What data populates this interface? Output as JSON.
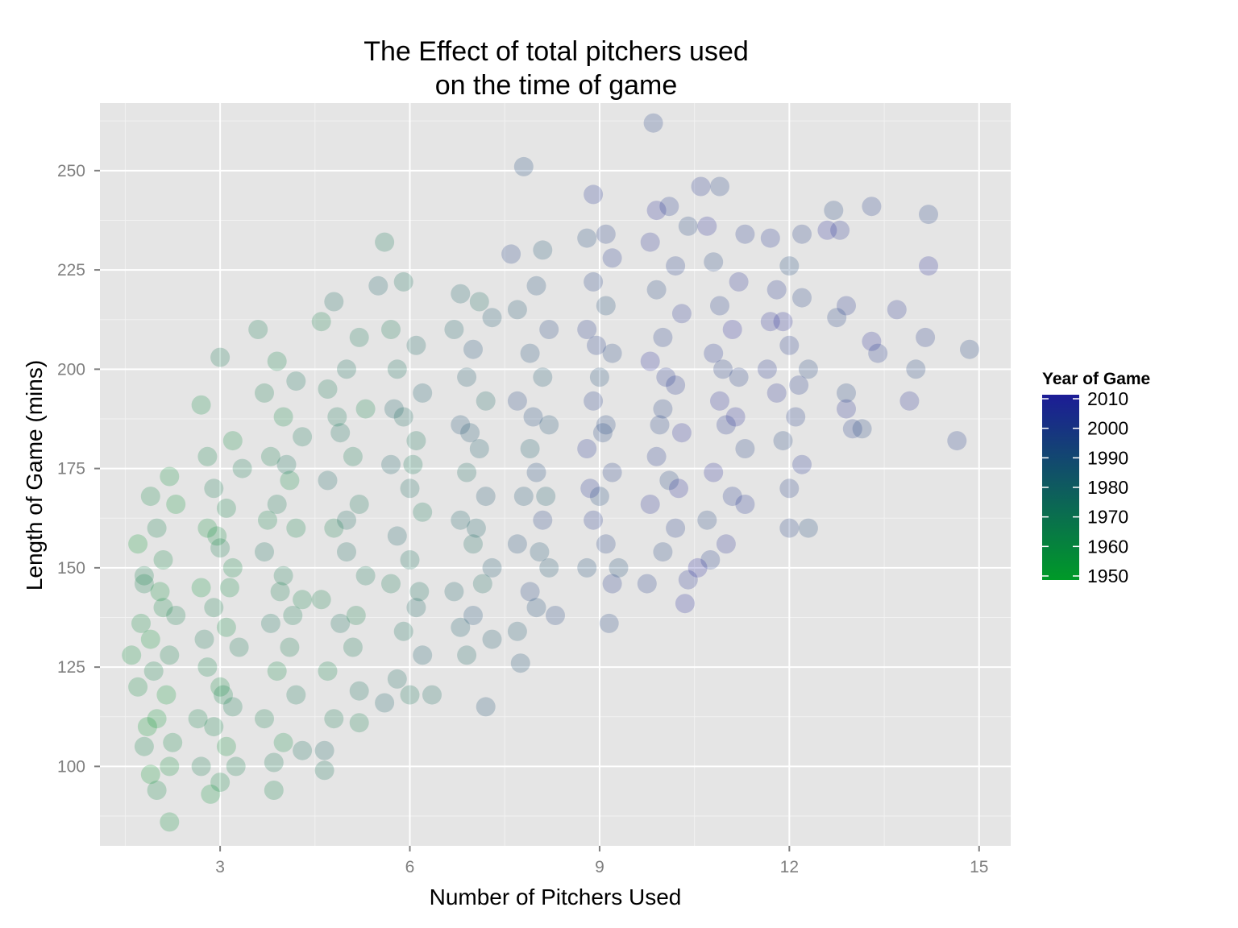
{
  "chart_data": {
    "type": "scatter",
    "title_lines": [
      "The Effect of total pitchers used",
      "on the time of game"
    ],
    "xlabel": "Number of Pitchers Used",
    "ylabel": "Length of Game (mins)",
    "xlim": [
      1.1,
      15.5
    ],
    "ylim": [
      80,
      267
    ],
    "x_ticks": [
      3,
      6,
      9,
      12,
      15
    ],
    "y_ticks": [
      100,
      125,
      150,
      175,
      200,
      225,
      250
    ],
    "grid": true,
    "panel_background": "#e5e5e5",
    "point_opacity": 0.22,
    "color_scale": {
      "title": "Year of Game",
      "low_year": 1950,
      "high_year": 2010,
      "low_color": "#009a28",
      "high_color": "#1c1c96",
      "legend_ticks": [
        2010,
        2000,
        1990,
        1980,
        1970,
        1960,
        1950
      ],
      "legend_position": "right"
    },
    "note_on_data": "Points are jittered horizontally around each integer pitcher count; values below are representative readings from the plot.",
    "series": [
      {
        "x_center": 2,
        "year_center": 1958,
        "points": [
          [
            1.7,
            156
          ],
          [
            1.9,
            168
          ],
          [
            2.2,
            173
          ],
          [
            1.8,
            146
          ],
          [
            2.1,
            140
          ],
          [
            1.9,
            132
          ],
          [
            2.2,
            128
          ],
          [
            1.7,
            120
          ],
          [
            2.0,
            112
          ],
          [
            1.8,
            105
          ],
          [
            2.2,
            100
          ],
          [
            1.9,
            98
          ],
          [
            2.0,
            94
          ],
          [
            2.2,
            86
          ],
          [
            1.8,
            148
          ],
          [
            2.1,
            152
          ],
          [
            2.3,
            166
          ],
          [
            2.0,
            160
          ],
          [
            1.75,
            136
          ],
          [
            2.15,
            118
          ],
          [
            1.95,
            124
          ],
          [
            2.05,
            144
          ],
          [
            1.85,
            110
          ],
          [
            2.25,
            106
          ],
          [
            1.6,
            128
          ],
          [
            2.3,
            138
          ]
        ]
      },
      {
        "x_center": 3,
        "year_center": 1962,
        "points": [
          [
            2.7,
            191
          ],
          [
            3.0,
            203
          ],
          [
            2.8,
            178
          ],
          [
            3.2,
            182
          ],
          [
            2.9,
            170
          ],
          [
            3.1,
            165
          ],
          [
            2.8,
            160
          ],
          [
            3.0,
            155
          ],
          [
            3.2,
            150
          ],
          [
            2.7,
            145
          ],
          [
            2.9,
            140
          ],
          [
            3.1,
            135
          ],
          [
            3.3,
            130
          ],
          [
            2.8,
            125
          ],
          [
            3.0,
            120
          ],
          [
            3.2,
            115
          ],
          [
            2.9,
            110
          ],
          [
            3.1,
            105
          ],
          [
            2.7,
            100
          ],
          [
            3.0,
            96
          ],
          [
            2.85,
            93
          ],
          [
            3.25,
            100
          ],
          [
            3.15,
            145
          ],
          [
            2.75,
            132
          ],
          [
            3.05,
            118
          ],
          [
            2.95,
            158
          ],
          [
            3.35,
            175
          ],
          [
            2.65,
            112
          ]
        ]
      },
      {
        "x_center": 4,
        "year_center": 1966,
        "points": [
          [
            3.6,
            210
          ],
          [
            3.9,
            202
          ],
          [
            4.2,
            197
          ],
          [
            3.7,
            194
          ],
          [
            4.0,
            188
          ],
          [
            4.3,
            183
          ],
          [
            3.8,
            178
          ],
          [
            4.1,
            172
          ],
          [
            3.9,
            166
          ],
          [
            4.2,
            160
          ],
          [
            3.7,
            154
          ],
          [
            4.0,
            148
          ],
          [
            4.3,
            142
          ],
          [
            3.8,
            136
          ],
          [
            4.1,
            130
          ],
          [
            3.9,
            124
          ],
          [
            4.2,
            118
          ],
          [
            3.7,
            112
          ],
          [
            4.0,
            106
          ],
          [
            3.85,
            101
          ],
          [
            3.85,
            94
          ],
          [
            4.3,
            104
          ],
          [
            4.15,
            138
          ],
          [
            3.75,
            162
          ],
          [
            4.05,
            176
          ],
          [
            3.95,
            144
          ]
        ]
      },
      {
        "x_center": 5,
        "year_center": 1970,
        "points": [
          [
            4.8,
            217
          ],
          [
            5.2,
            208
          ],
          [
            4.6,
            212
          ],
          [
            5.0,
            200
          ],
          [
            4.7,
            195
          ],
          [
            5.3,
            190
          ],
          [
            4.9,
            184
          ],
          [
            5.1,
            178
          ],
          [
            4.7,
            172
          ],
          [
            5.2,
            166
          ],
          [
            4.8,
            160
          ],
          [
            5.0,
            154
          ],
          [
            5.3,
            148
          ],
          [
            4.6,
            142
          ],
          [
            4.9,
            136
          ],
          [
            5.1,
            130
          ],
          [
            4.7,
            124
          ],
          [
            5.2,
            119
          ],
          [
            4.8,
            112
          ],
          [
            4.65,
            104
          ],
          [
            4.65,
            99
          ],
          [
            5.2,
            111
          ],
          [
            5.0,
            162
          ],
          [
            4.85,
            188
          ],
          [
            5.15,
            138
          ]
        ]
      },
      {
        "x_center": 6,
        "year_center": 1975,
        "points": [
          [
            5.6,
            232
          ],
          [
            5.5,
            221
          ],
          [
            5.9,
            222
          ],
          [
            5.7,
            210
          ],
          [
            6.1,
            206
          ],
          [
            5.8,
            200
          ],
          [
            6.2,
            194
          ],
          [
            5.9,
            188
          ],
          [
            6.1,
            182
          ],
          [
            5.7,
            176
          ],
          [
            6.0,
            170
          ],
          [
            6.2,
            164
          ],
          [
            5.8,
            158
          ],
          [
            6.0,
            152
          ],
          [
            5.7,
            146
          ],
          [
            6.1,
            140
          ],
          [
            5.9,
            134
          ],
          [
            6.2,
            128
          ],
          [
            5.8,
            122
          ],
          [
            6.0,
            118
          ],
          [
            5.6,
            116
          ],
          [
            6.35,
            118
          ],
          [
            6.05,
            176
          ],
          [
            5.75,
            190
          ],
          [
            6.15,
            144
          ]
        ]
      },
      {
        "x_center": 7,
        "year_center": 1982,
        "points": [
          [
            6.8,
            219
          ],
          [
            7.1,
            217
          ],
          [
            7.3,
            213
          ],
          [
            6.7,
            210
          ],
          [
            7.0,
            205
          ],
          [
            6.9,
            198
          ],
          [
            7.2,
            192
          ],
          [
            6.8,
            186
          ],
          [
            7.1,
            180
          ],
          [
            6.9,
            174
          ],
          [
            7.2,
            168
          ],
          [
            6.8,
            162
          ],
          [
            7.0,
            156
          ],
          [
            7.3,
            150
          ],
          [
            6.7,
            144
          ],
          [
            7.0,
            138
          ],
          [
            7.3,
            132
          ],
          [
            6.9,
            128
          ],
          [
            7.2,
            115
          ],
          [
            6.8,
            135
          ],
          [
            7.15,
            146
          ],
          [
            6.95,
            184
          ],
          [
            7.05,
            160
          ]
        ]
      },
      {
        "x_center": 8,
        "year_center": 1990,
        "points": [
          [
            7.8,
            251
          ],
          [
            8.1,
            230
          ],
          [
            7.6,
            229
          ],
          [
            8.0,
            221
          ],
          [
            7.7,
            215
          ],
          [
            8.2,
            210
          ],
          [
            7.9,
            204
          ],
          [
            8.1,
            198
          ],
          [
            7.7,
            192
          ],
          [
            8.2,
            186
          ],
          [
            7.9,
            180
          ],
          [
            8.0,
            174
          ],
          [
            7.8,
            168
          ],
          [
            8.1,
            162
          ],
          [
            7.7,
            156
          ],
          [
            8.2,
            150
          ],
          [
            7.9,
            144
          ],
          [
            8.0,
            140
          ],
          [
            7.7,
            134
          ],
          [
            8.3,
            138
          ],
          [
            7.75,
            126
          ],
          [
            8.15,
            168
          ],
          [
            7.95,
            188
          ],
          [
            8.05,
            154
          ]
        ]
      },
      {
        "x_center": 9,
        "year_center": 1997,
        "points": [
          [
            8.9,
            244
          ],
          [
            9.1,
            234
          ],
          [
            8.8,
            233
          ],
          [
            9.2,
            228
          ],
          [
            8.9,
            222
          ],
          [
            9.1,
            216
          ],
          [
            8.8,
            210
          ],
          [
            9.2,
            204
          ],
          [
            9.0,
            198
          ],
          [
            8.9,
            192
          ],
          [
            9.1,
            186
          ],
          [
            8.8,
            180
          ],
          [
            9.2,
            174
          ],
          [
            9.0,
            168
          ],
          [
            8.9,
            162
          ],
          [
            9.1,
            156
          ],
          [
            8.8,
            150
          ],
          [
            9.2,
            146
          ],
          [
            9.15,
            136
          ],
          [
            9.3,
            150
          ],
          [
            8.95,
            206
          ],
          [
            9.05,
            184
          ],
          [
            8.85,
            170
          ]
        ]
      },
      {
        "x_center": 10,
        "year_center": 2002,
        "points": [
          [
            9.85,
            262
          ],
          [
            9.9,
            240
          ],
          [
            10.1,
            241
          ],
          [
            10.4,
            236
          ],
          [
            9.8,
            232
          ],
          [
            10.2,
            226
          ],
          [
            9.9,
            220
          ],
          [
            10.3,
            214
          ],
          [
            10.0,
            208
          ],
          [
            9.8,
            202
          ],
          [
            10.2,
            196
          ],
          [
            10.0,
            190
          ],
          [
            10.3,
            184
          ],
          [
            9.9,
            178
          ],
          [
            10.1,
            172
          ],
          [
            9.8,
            166
          ],
          [
            10.2,
            160
          ],
          [
            10.0,
            154
          ],
          [
            10.4,
            147
          ],
          [
            9.75,
            146
          ],
          [
            10.35,
            141
          ],
          [
            10.05,
            198
          ],
          [
            9.95,
            186
          ],
          [
            10.25,
            170
          ]
        ]
      },
      {
        "x_center": 11,
        "year_center": 2003,
        "points": [
          [
            10.6,
            246
          ],
          [
            10.9,
            246
          ],
          [
            10.7,
            236
          ],
          [
            11.3,
            234
          ],
          [
            10.8,
            227
          ],
          [
            11.2,
            222
          ],
          [
            10.9,
            216
          ],
          [
            11.1,
            210
          ],
          [
            10.8,
            204
          ],
          [
            11.2,
            198
          ],
          [
            10.9,
            192
          ],
          [
            11.0,
            186
          ],
          [
            11.3,
            180
          ],
          [
            10.8,
            174
          ],
          [
            11.1,
            168
          ],
          [
            10.7,
            162
          ],
          [
            11.0,
            156
          ],
          [
            10.75,
            152
          ],
          [
            10.55,
            150
          ],
          [
            11.3,
            166
          ],
          [
            10.95,
            200
          ],
          [
            11.15,
            188
          ]
        ]
      },
      {
        "x_center": 12,
        "year_center": 2000,
        "points": [
          [
            11.7,
            233
          ],
          [
            12.2,
            234
          ],
          [
            12.0,
            226
          ],
          [
            11.8,
            220
          ],
          [
            12.2,
            218
          ],
          [
            11.7,
            212
          ],
          [
            12.0,
            206
          ],
          [
            12.3,
            200
          ],
          [
            11.8,
            194
          ],
          [
            12.1,
            188
          ],
          [
            11.9,
            182
          ],
          [
            12.2,
            176
          ],
          [
            12.0,
            170
          ],
          [
            12.3,
            160
          ],
          [
            11.65,
            200
          ],
          [
            12.0,
            160
          ],
          [
            11.9,
            212
          ],
          [
            12.15,
            196
          ]
        ]
      },
      {
        "x_center": 13,
        "year_center": 2002,
        "points": [
          [
            12.7,
            240
          ],
          [
            12.8,
            235
          ],
          [
            13.3,
            241
          ],
          [
            12.6,
            235
          ],
          [
            12.9,
            216
          ],
          [
            12.75,
            213
          ],
          [
            13.3,
            207
          ],
          [
            13.4,
            204
          ],
          [
            12.9,
            194
          ],
          [
            12.9,
            190
          ],
          [
            13.0,
            185
          ],
          [
            13.15,
            185
          ],
          [
            13.7,
            215
          ]
        ]
      },
      {
        "x_center": 14,
        "year_center": 2000,
        "points": [
          [
            14.2,
            239
          ],
          [
            14.2,
            226
          ],
          [
            14.15,
            208
          ],
          [
            14.0,
            200
          ],
          [
            13.9,
            192
          ],
          [
            14.65,
            182
          ],
          [
            14.85,
            205
          ]
        ]
      }
    ]
  }
}
